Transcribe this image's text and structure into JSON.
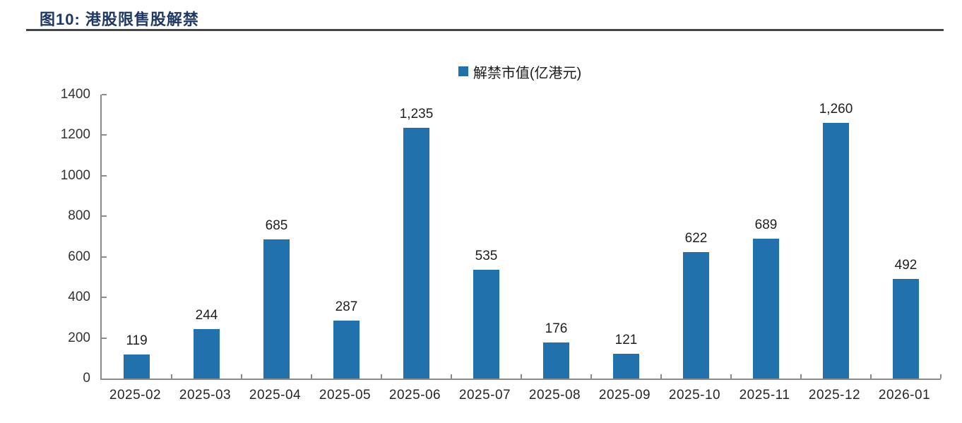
{
  "figure": {
    "title": "图10:  港股限售股解禁"
  },
  "colors": {
    "title": "#1F3864",
    "bar": "#2171AC",
    "axis": "#8c8c8c",
    "rule": "#44444c"
  },
  "chart_data": {
    "type": "bar",
    "title": "港股限售股解禁",
    "legend": [
      "解禁市值(亿港元)"
    ],
    "legend_position": "top-center",
    "categories": [
      "2025-02",
      "2025-03",
      "2025-04",
      "2025-05",
      "2025-06",
      "2025-07",
      "2025-08",
      "2025-09",
      "2025-10",
      "2025-11",
      "2025-12",
      "2026-01"
    ],
    "values": [
      119,
      244,
      685,
      287,
      1235,
      535,
      176,
      121,
      622,
      689,
      1260,
      492
    ],
    "value_labels": [
      "119",
      "244",
      "685",
      "287",
      "1,235",
      "535",
      "176",
      "121",
      "622",
      "689",
      "1,260",
      "492"
    ],
    "xlabel": "",
    "ylabel": "",
    "ylim": [
      0,
      1400
    ],
    "ytick_step": 200,
    "ytick_labels": [
      "0",
      "200",
      "400",
      "600",
      "800",
      "1000",
      "1200",
      "1400"
    ],
    "grid": false
  }
}
